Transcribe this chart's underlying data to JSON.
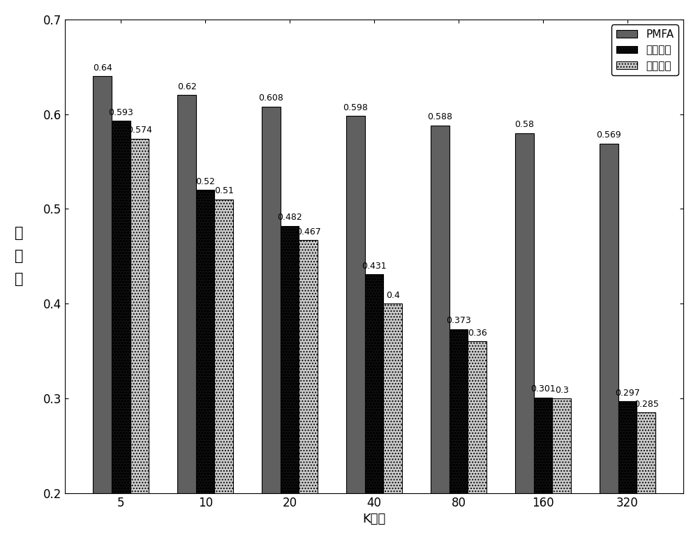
{
  "categories": [
    "5",
    "10",
    "20",
    "40",
    "80",
    "160",
    "320"
  ],
  "pmfa": [
    0.64,
    0.62,
    0.608,
    0.598,
    0.588,
    0.58,
    0.569
  ],
  "collab": [
    0.593,
    0.52,
    0.482,
    0.431,
    0.373,
    0.301,
    0.297
  ],
  "content": [
    0.574,
    0.51,
    0.467,
    0.4,
    0.36,
    0.3,
    0.285
  ],
  "pmfa_color": "#606060",
  "collab_color": "#111111",
  "content_color": "#cccccc",
  "ylabel": "多\n样\n性",
  "xlabel": "K近邻",
  "ylim": [
    0.2,
    0.7
  ],
  "yticks": [
    0.2,
    0.3,
    0.4,
    0.5,
    0.6,
    0.7
  ],
  "legend_labels": [
    "PMFA",
    "协同过滤",
    "基于内容"
  ],
  "bar_width": 0.22,
  "fontsize_label": 13,
  "fontsize_tick": 12,
  "fontsize_annot": 9,
  "fontsize_legend": 11
}
